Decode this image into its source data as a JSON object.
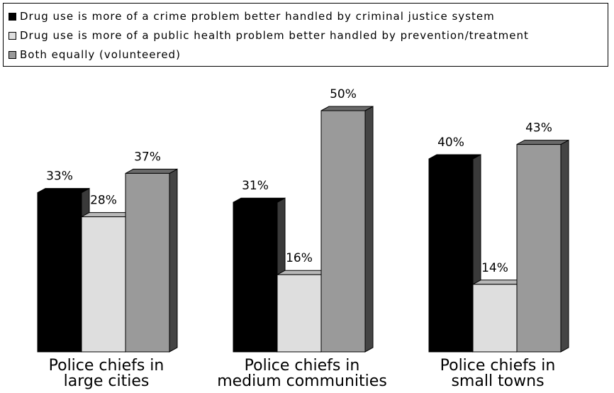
{
  "chart_data": {
    "type": "bar",
    "title": "",
    "xlabel": "",
    "ylabel": "",
    "ylim": [
      0,
      50
    ],
    "categories": [
      [
        "Police chiefs in",
        "large cities"
      ],
      [
        "Police chiefs in",
        "medium communities"
      ],
      [
        "Police chiefs in",
        "small towns"
      ]
    ],
    "series": [
      {
        "name": "Drug use is more of a crime problem better handled by criminal justice system",
        "values": [
          33,
          31,
          40
        ],
        "color": "#000000"
      },
      {
        "name": "Drug use is more of a public health problem better handled by prevention/treatment",
        "values": [
          28,
          16,
          14
        ],
        "color": "#dedede"
      },
      {
        "name": "Both equally (volunteered)",
        "values": [
          37,
          50,
          43
        ],
        "color": "#9a9a9a"
      }
    ],
    "value_suffix": "%",
    "legend": "top",
    "grid": false
  }
}
